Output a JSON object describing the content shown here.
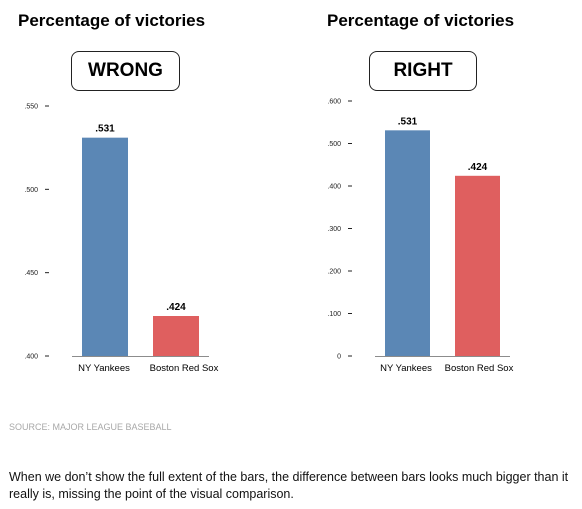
{
  "source": "SOURCE: MAJOR LEAGUE BASEBALL",
  "caption": "When we don’t show the full extent of the bars, the difference between bars looks much bigger than it really is, missing the point of the visual comparison.",
  "colors": {
    "yankees": "#5b87b5",
    "redsox": "#df5f5f"
  },
  "chart_data": [
    {
      "type": "bar",
      "title": "Percentage of victories",
      "tag": "WRONG",
      "categories": [
        "NY Yankees",
        "Boston Red Sox"
      ],
      "values": [
        0.531,
        0.424
      ],
      "value_labels": [
        ".531",
        ".424"
      ],
      "ylim": [
        0.4,
        0.55
      ],
      "yticks": [
        0.4,
        0.45,
        0.5,
        0.55
      ],
      "ytick_labels": [
        ".400",
        ".450",
        ".500",
        ".550"
      ],
      "xlabel": "",
      "ylabel": ""
    },
    {
      "type": "bar",
      "title": "Percentage of victories",
      "tag": "RIGHT",
      "categories": [
        "NY Yankees",
        "Boston Red Sox"
      ],
      "values": [
        0.531,
        0.424
      ],
      "value_labels": [
        ".531",
        ".424"
      ],
      "ylim": [
        0,
        0.6
      ],
      "yticks": [
        0,
        0.1,
        0.2,
        0.3,
        0.4,
        0.5,
        0.6
      ],
      "ytick_labels": [
        "0",
        ".100",
        ".200",
        ".300",
        ".400",
        ".500",
        ".600"
      ],
      "xlabel": "",
      "ylabel": ""
    }
  ]
}
